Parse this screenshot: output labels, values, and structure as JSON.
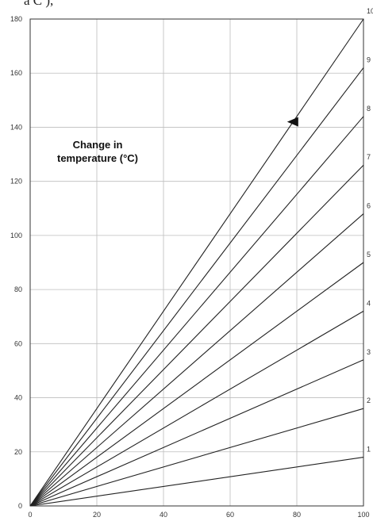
{
  "header_fragment": "a   C  ),",
  "chart_data": {
    "type": "line",
    "title": "",
    "xlabel": "",
    "ylabel": "",
    "annotation_lines": [
      "Change in",
      "temperature (°C)"
    ],
    "xlim": [
      0,
      100
    ],
    "ylim": [
      0,
      180
    ],
    "x_ticks": [
      0,
      20,
      40,
      60,
      80,
      100
    ],
    "y_ticks": [
      0,
      20,
      40,
      60,
      80,
      100,
      120,
      140,
      160,
      180
    ],
    "grid": true,
    "series": [
      {
        "name": "1",
        "x": [
          0,
          100
        ],
        "y": [
          0,
          18
        ]
      },
      {
        "name": "2",
        "x": [
          0,
          100
        ],
        "y": [
          0,
          36
        ]
      },
      {
        "name": "3",
        "x": [
          0,
          100
        ],
        "y": [
          0,
          54
        ]
      },
      {
        "name": "4",
        "x": [
          0,
          100
        ],
        "y": [
          0,
          72
        ]
      },
      {
        "name": "5",
        "x": [
          0,
          100
        ],
        "y": [
          0,
          90
        ]
      },
      {
        "name": "6",
        "x": [
          0,
          100
        ],
        "y": [
          0,
          108
        ]
      },
      {
        "name": "7",
        "x": [
          0,
          100
        ],
        "y": [
          0,
          126
        ]
      },
      {
        "name": "8",
        "x": [
          0,
          100
        ],
        "y": [
          0,
          144
        ]
      },
      {
        "name": "9",
        "x": [
          0,
          100
        ],
        "y": [
          0,
          162
        ]
      },
      {
        "name": "10",
        "x": [
          0,
          100
        ],
        "y": [
          0,
          180
        ]
      }
    ],
    "marker": {
      "shape": "triangle-left",
      "x": 79,
      "y": 142
    }
  }
}
